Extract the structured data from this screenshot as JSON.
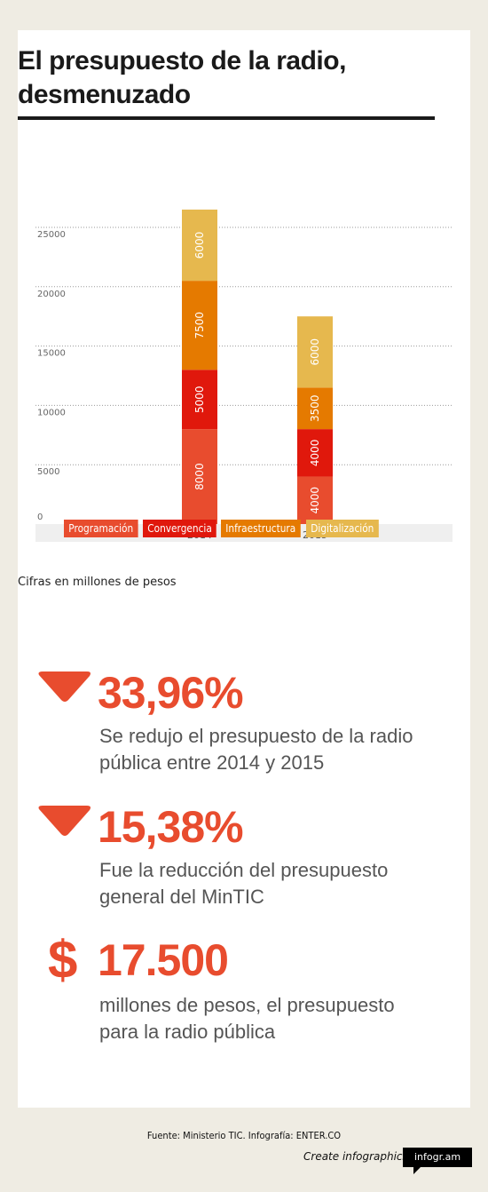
{
  "title": "El presupuesto de la radio, desmenuzado",
  "note": "Cifras en millones de pesos",
  "chart_data": {
    "type": "bar",
    "stacked": true,
    "categories": [
      "2014",
      "2015"
    ],
    "series": [
      {
        "name": "Programación",
        "values": [
          8000,
          4000
        ],
        "color": "#e84c2e"
      },
      {
        "name": "Convergencia",
        "values": [
          5000,
          4000
        ],
        "color": "#e0180c"
      },
      {
        "name": "Infraestructura",
        "values": [
          7500,
          3500
        ],
        "color": "#e57a00"
      },
      {
        "name": "Digitalización",
        "values": [
          6000,
          6000
        ],
        "color": "#e6b84e"
      }
    ],
    "yticks": [
      "0",
      "5000",
      "10000",
      "15000",
      "20000",
      "25000"
    ],
    "ylim": [
      0,
      25000
    ],
    "grid": true,
    "legend_position": "bottom"
  },
  "stats": [
    {
      "icon": "down-triangle-icon",
      "value": "33,96%",
      "description": "Se redujo el presupuesto de la radio pública entre 2014 y 2015"
    },
    {
      "icon": "down-triangle-icon",
      "value": "15,38%",
      "description": "Fue la reducción del presupuesto general del MinTIC"
    },
    {
      "icon": "dollar-sign",
      "symbol": "$",
      "value": "17.500",
      "description": "millones de pesos, el presupuesto para la radio pública"
    }
  ],
  "footer": {
    "source": "Fuente: Ministerio TIC. Infografía: ENTER.CO",
    "create": "Create infographics",
    "badge": "infogr.am"
  },
  "colors": {
    "accent": "#e84c2e",
    "background": "#efece3"
  }
}
